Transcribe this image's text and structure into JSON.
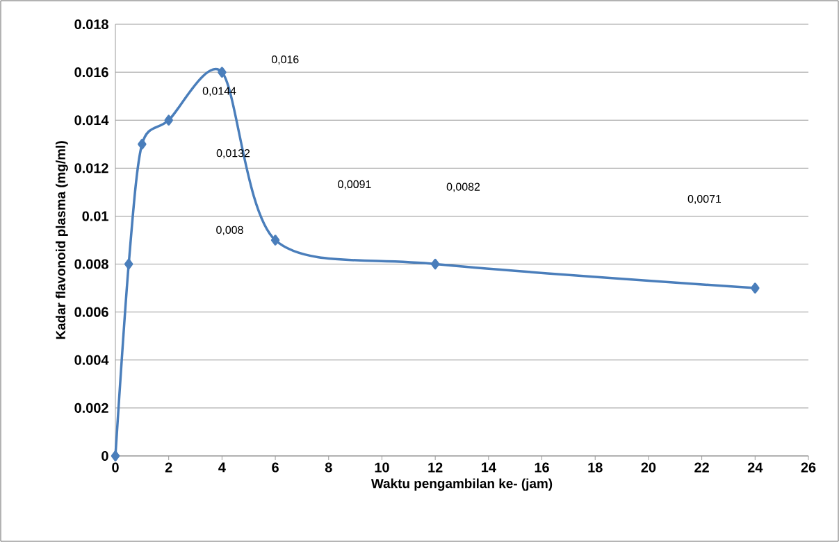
{
  "chart_data": {
    "type": "line",
    "xlabel": "Waktu pengambilan ke- (jam)",
    "ylabel": "Kadar flavonoid plasma (mg/ml)",
    "x": [
      0,
      0.5,
      1,
      2,
      4,
      6,
      12,
      24
    ],
    "series": [
      {
        "color": "#4a7ebb",
        "values": [
          0,
          0.008,
          0.013,
          0.014,
          0.016,
          0.009,
          0.008,
          0.007
        ]
      }
    ],
    "xlim": [
      0,
      26
    ],
    "xticks": [
      0,
      2,
      4,
      6,
      8,
      10,
      12,
      14,
      16,
      18,
      20,
      22,
      24,
      26
    ],
    "ylim": [
      0,
      0.018
    ],
    "yticks": [
      0,
      0.002,
      0.004,
      0.006,
      0.008,
      0.01,
      0.012,
      0.014,
      0.016,
      0.018
    ],
    "grid": "y",
    "marker": "diamond",
    "line_style": "solid",
    "annotations": [
      "0,016",
      "0,0144",
      "0,0132",
      "0,0091",
      "0,0082",
      "0,0071",
      "0,008"
    ]
  }
}
